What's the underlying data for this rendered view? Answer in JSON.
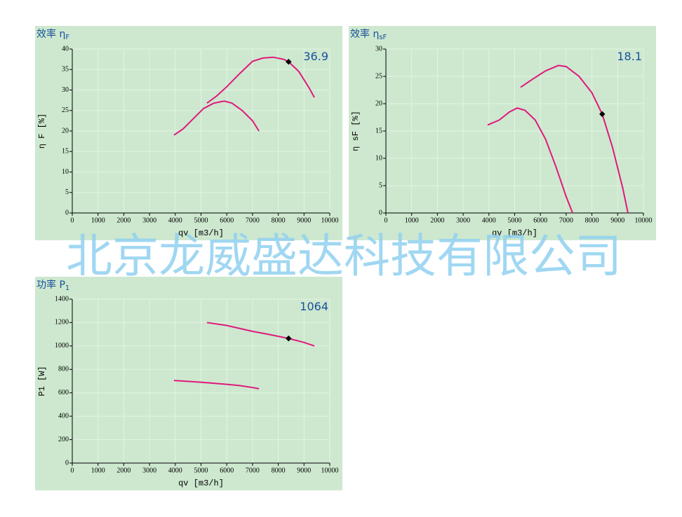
{
  "chart_data": [
    {
      "type": "line",
      "title": "效率 η",
      "title_sub": "F",
      "xlabel": "qv [m3/h]",
      "ylabel": "η F [%]",
      "xlim": [
        0,
        10000
      ],
      "xticks": [
        0,
        1000,
        2000,
        3000,
        4000,
        5000,
        6000,
        7000,
        8000,
        9000,
        10000
      ],
      "ylim": [
        0,
        40
      ],
      "yticks": [
        0,
        5,
        10,
        15,
        20,
        25,
        30,
        35,
        40
      ],
      "grid": true,
      "series": [
        {
          "color": "#e0197d",
          "x": [
            3950,
            4300,
            4700,
            5100,
            5500,
            5900,
            6200,
            6600,
            7000,
            7250
          ],
          "values": [
            19,
            20.5,
            23,
            25.5,
            26.8,
            27.3,
            26.8,
            25,
            22.5,
            20
          ]
        },
        {
          "color": "#e0197d",
          "x": [
            5230,
            5600,
            6000,
            6500,
            7000,
            7400,
            7800,
            8200,
            8400,
            8800,
            9200,
            9400
          ],
          "values": [
            26.8,
            28.5,
            30.8,
            34,
            37,
            37.8,
            38,
            37.5,
            36.9,
            34.5,
            30.5,
            28.2
          ]
        }
      ],
      "point": {
        "x": 8400,
        "y": 36.9
      }
    },
    {
      "type": "line",
      "title": "效率 η",
      "title_sub": "sF",
      "xlabel": "qv [m3/h]",
      "ylabel": "η sF [%]",
      "xlim": [
        0,
        10000
      ],
      "xticks": [
        0,
        1000,
        2000,
        3000,
        4000,
        5000,
        6000,
        7000,
        8000,
        9000,
        10000
      ],
      "ylim": [
        0,
        30
      ],
      "yticks": [
        0,
        5,
        10,
        15,
        20,
        25,
        30
      ],
      "grid": true,
      "series": [
        {
          "color": "#e0197d",
          "x": [
            3950,
            4400,
            4800,
            5100,
            5400,
            5800,
            6200,
            6600,
            7000,
            7250
          ],
          "values": [
            16.1,
            17,
            18.5,
            19.2,
            18.8,
            17,
            13.5,
            8.5,
            3,
            0
          ]
        },
        {
          "color": "#e0197d",
          "x": [
            5230,
            5700,
            6200,
            6700,
            7000,
            7500,
            8000,
            8400,
            8800,
            9200,
            9400
          ],
          "values": [
            23,
            24.5,
            26,
            27,
            26.8,
            25,
            22,
            18.1,
            12,
            4.5,
            0
          ]
        }
      ],
      "point": {
        "x": 8400,
        "y": 18.1
      }
    },
    {
      "type": "line",
      "title": "功率 P",
      "title_sub": "1",
      "xlabel": "qv [m3/h]",
      "ylabel": "P1 [W]",
      "xlim": [
        0,
        10000
      ],
      "xticks": [
        0,
        1000,
        2000,
        3000,
        4000,
        5000,
        6000,
        7000,
        8000,
        9000,
        10000
      ],
      "ylim": [
        0,
        1400
      ],
      "yticks": [
        0,
        200,
        400,
        600,
        800,
        1000,
        1200,
        1400
      ],
      "grid": true,
      "series": [
        {
          "color": "#e0197d",
          "x": [
            3950,
            5000,
            6000,
            6500,
            7000,
            7250
          ],
          "values": [
            705,
            690,
            672,
            662,
            645,
            635
          ]
        },
        {
          "color": "#e0197d",
          "x": [
            5230,
            6000,
            7000,
            7600,
            8400,
            9000,
            9400
          ],
          "values": [
            1200,
            1175,
            1125,
            1100,
            1064,
            1030,
            1000
          ]
        }
      ],
      "point": {
        "x": 8400,
        "y": 1064
      }
    }
  ],
  "watermark": "北京龙威盛达科技有限公司"
}
